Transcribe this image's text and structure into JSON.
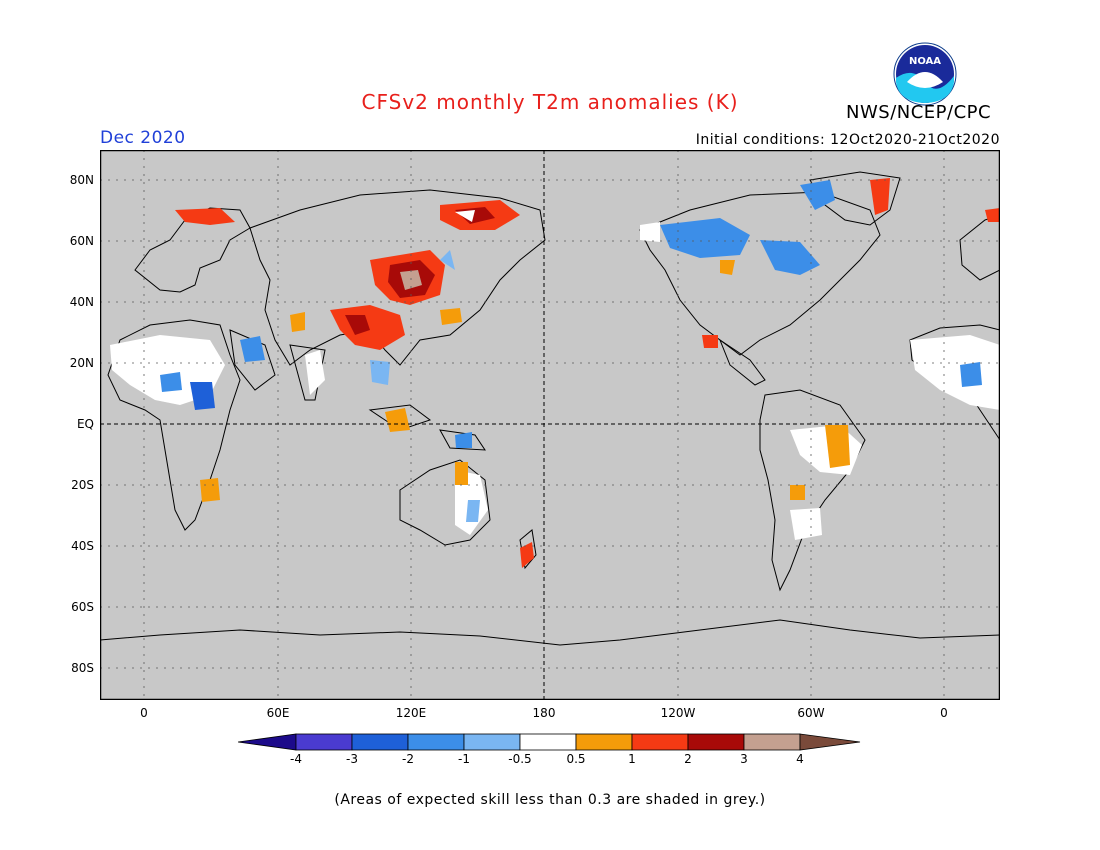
{
  "header": {
    "title": "CFSv2 monthly T2m anomalies (K)",
    "agency": "NWS/NCEP/CPC",
    "month": "Dec 2020",
    "initial_conditions": "Initial conditions: 12Oct2020-21Oct2020",
    "logo_text": "NOAA"
  },
  "map": {
    "background_color": "#c8c8c8",
    "lat_labels": [
      "80N",
      "60N",
      "40N",
      "20N",
      "EQ",
      "20S",
      "40S",
      "60S",
      "80S"
    ],
    "lon_labels": [
      "0",
      "60E",
      "120E",
      "180",
      "120W",
      "60W",
      "0"
    ]
  },
  "colorbar": {
    "colors": [
      "#1c0a8a",
      "#4a3bd0",
      "#1e60d8",
      "#3c8ee8",
      "#7ab6f2",
      "#ffffff",
      "#f59c0a",
      "#f53a14",
      "#a80a08",
      "#c4a090",
      "#7a4a3a"
    ],
    "labels": [
      "-4",
      "-3",
      "-2",
      "-1",
      "-0.5",
      "0.5",
      "1",
      "2",
      "3",
      "4"
    ]
  },
  "footnote": "(Areas of expected skill less than 0.3 are shaded in grey.)"
}
